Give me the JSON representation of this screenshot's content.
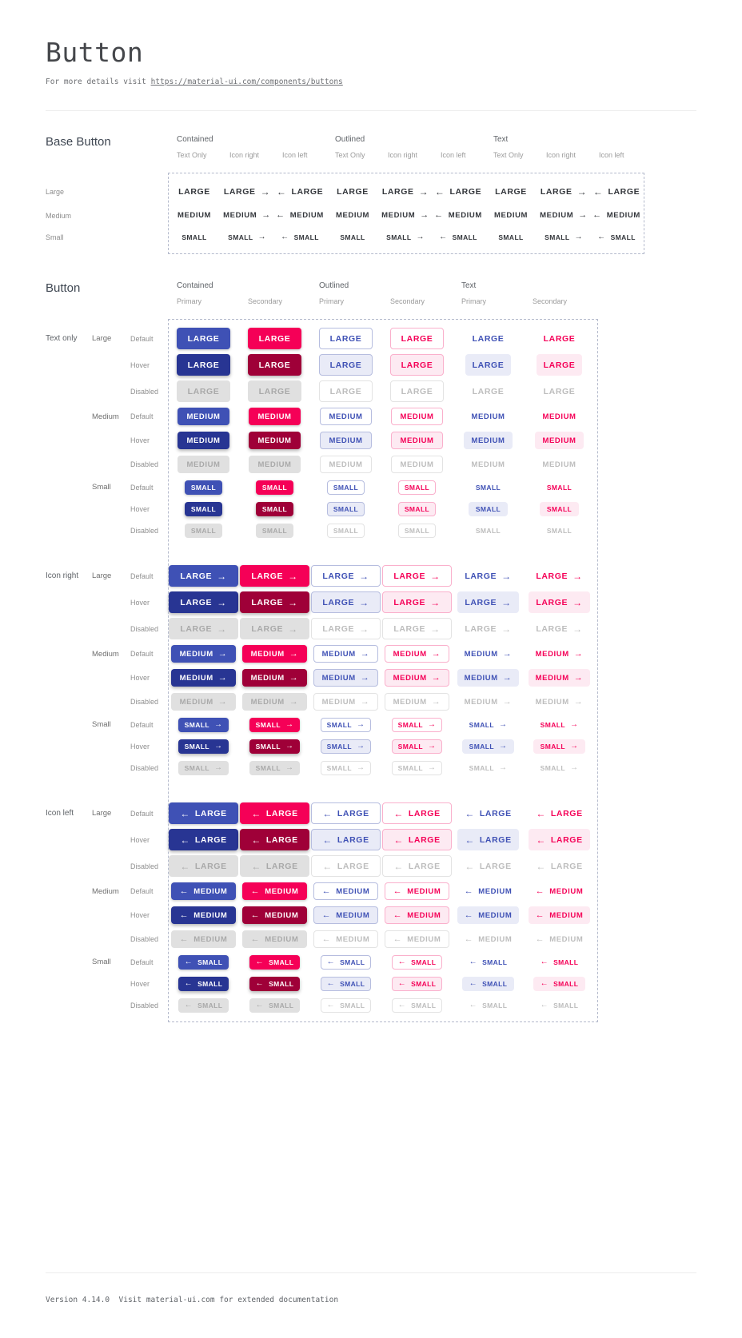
{
  "page": {
    "title": "Button",
    "subtitle_prefix": "For more details visit ",
    "subtitle_link": "https://material-ui.com/components/buttons",
    "footer": "Version 4.14.0  Visit material-ui.com for extended documentation"
  },
  "icons": {
    "arrow_right": "→",
    "arrow_left": "←"
  },
  "colors": {
    "primary": "#3f51b5",
    "primary_hover": "#283593",
    "secondary": "#f50057",
    "secondary_hover": "#9f0038",
    "disabled_bg": "#e0e0e0",
    "disabled_text": "#a9a9a9",
    "disabled_fg": "#bdbdbd",
    "outline_primary_border": "#b6bddf",
    "outline_secondary_border": "#fab0cc",
    "hover_tint_primary": "#e9ebf7",
    "hover_tint_secondary": "#fdeaf2",
    "frame_border": "#b4bacc",
    "base_text": "#33363b"
  },
  "base_button": {
    "section_title": "Base Button",
    "groups": [
      "Contained",
      "Outlined",
      "Text"
    ],
    "subcolumns": [
      "Text Only",
      "Icon right",
      "Icon left"
    ],
    "rows": [
      {
        "label": "Large",
        "text": "LARGE"
      },
      {
        "label": "Medium",
        "text": "MEDIUM"
      },
      {
        "label": "Small",
        "text": "SMALL"
      }
    ]
  },
  "button_section": {
    "section_title": "Button",
    "groups": [
      "Contained",
      "Outlined",
      "Text"
    ],
    "subcolumns": [
      "Primary",
      "Secondary"
    ],
    "row_groups": [
      {
        "label": "Text only",
        "icon": "none"
      },
      {
        "label": "Icon right",
        "icon": "right"
      },
      {
        "label": "Icon left",
        "icon": "left"
      }
    ],
    "sizes": [
      {
        "label": "Large",
        "text": "LARGE"
      },
      {
        "label": "Medium",
        "text": "MEDIUM"
      },
      {
        "label": "Small",
        "text": "SMALL"
      }
    ],
    "states": [
      "Default",
      "Hover",
      "Disabled"
    ]
  }
}
